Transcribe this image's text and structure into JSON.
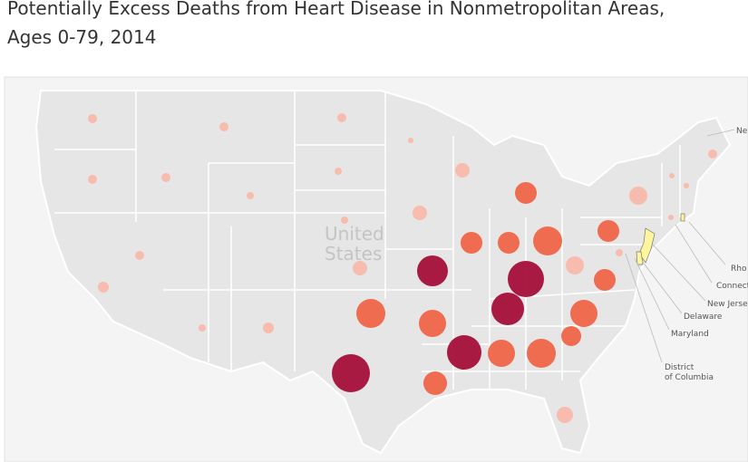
{
  "title_lines": [
    "Potentially Excess Deaths from Heart Disease in Nonmetropolitan Areas,",
    "Ages 0-79, 2014"
  ],
  "map_label_lines": [
    "United",
    "States"
  ],
  "callouts": [
    "Ne",
    "Rho",
    "Connect",
    "New Jerse",
    "Delaware",
    "Maryland",
    "District",
    "of Columbia"
  ],
  "markers": {
    "values": [
      5,
      5,
      5,
      3,
      5,
      5,
      4,
      4,
      4,
      8,
      12,
      8,
      12,
      12,
      16,
      12,
      10,
      3,
      3,
      5,
      3,
      5,
      8,
      17,
      20,
      10,
      12,
      4,
      6,
      4,
      6,
      16,
      15,
      18,
      15,
      11,
      19,
      15,
      16,
      21,
      13,
      9
    ],
    "colors": [
      "#f9b9ab",
      "#f9b9ab",
      "#f9b9ab",
      "#f9b9ab",
      "#f9b9ab",
      "#f9b9ab",
      "#f9b9ab",
      "#f9b9ab",
      "#f9b9ab",
      "#f9b9ab",
      "#ef6548",
      "#f9b9ab",
      "#ef6548",
      "#ef6548",
      "#ef6548",
      "#ef6548",
      "#f9b9ab",
      "#f9b9ab",
      "#f9b9ab",
      "#f9b9ab",
      "#f9b9ab",
      "#f9b9ab",
      "#f9b9ab",
      "#a50f3a",
      "#a50f3a",
      "#f9b9ab",
      "#ef6548",
      "#f9b9ab",
      "#f9b9ab",
      "#f9b9ab",
      "#f9b9ab",
      "#ef6548",
      "#ef6548",
      "#a50f3a",
      "#ef6548",
      "#ef6548",
      "#a50f3a",
      "#ef6548",
      "#ef6548",
      "#a50f3a",
      "#ef6548",
      "#f9b9ab"
    ]
  }
}
